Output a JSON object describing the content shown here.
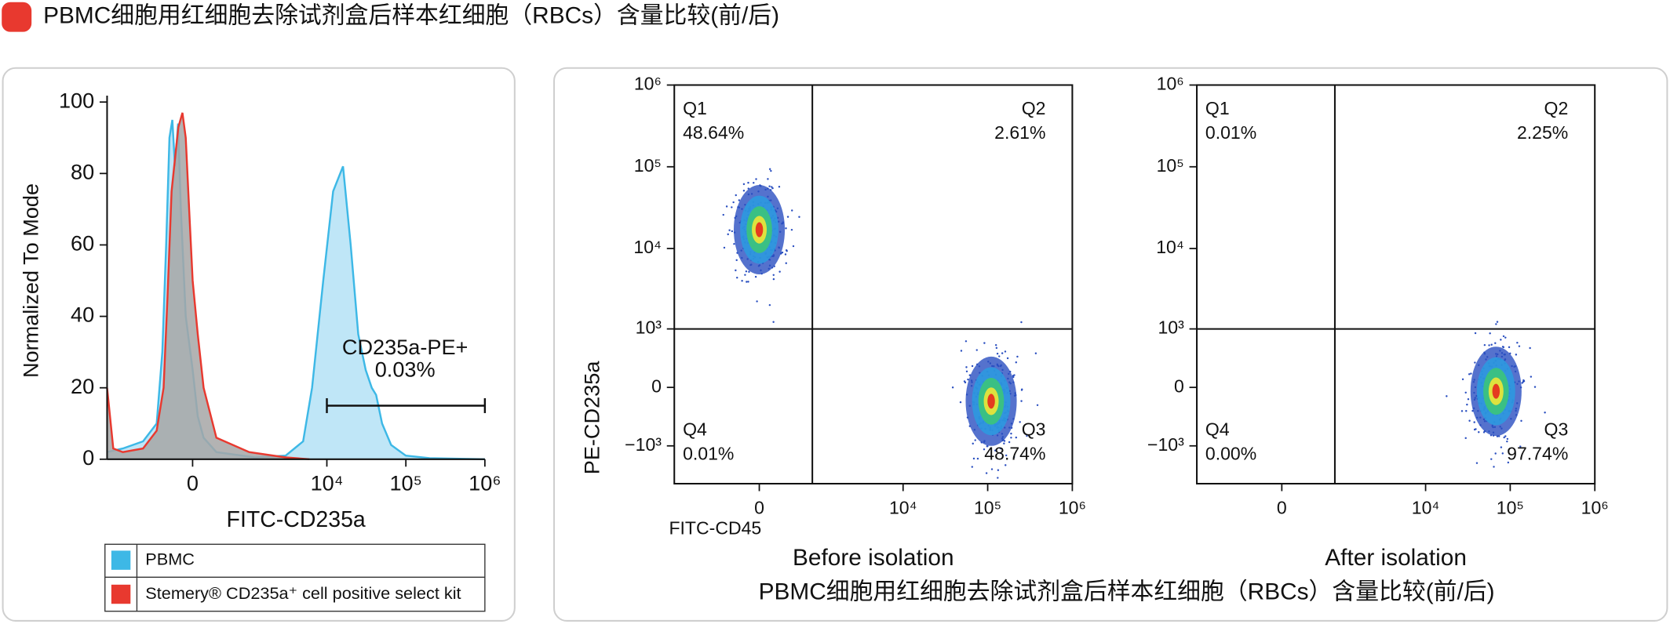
{
  "header": {
    "title": "PBMC细胞用红细胞去除试剂盒后样本红细胞（RBCs）含量比较(前/后)"
  },
  "caption": "PBMC细胞用红细胞去除试剂盒后样本红细胞（RBCs）含量比较(前/后)",
  "chart_data": [
    {
      "type": "area",
      "xlabel": "FITC-CD235a",
      "ylabel": "Normalized To Mode",
      "xscale": "biexponential",
      "xlim": [
        -2400,
        1000000
      ],
      "xticks": [
        0,
        {
          "value": 10000,
          "label": "10⁴"
        },
        {
          "value": 100000,
          "label": "10⁵"
        },
        {
          "value": 1000000,
          "label": "10⁶"
        }
      ],
      "ylim": [
        0,
        100
      ],
      "yticks": [
        0,
        20,
        40,
        60,
        80,
        100
      ],
      "legend": "bottom",
      "series": [
        {
          "name": "PBMC",
          "color": "#3db8e6",
          "fill": "#bfe6f7",
          "x": [
            -2400,
            -1500,
            -800,
            -500,
            -400,
            -340,
            -290,
            -250,
            -215,
            -175,
            -140,
            -80,
            0,
            60,
            130,
            300,
            1200,
            3000,
            5000,
            6500,
            9000,
            12000,
            16000,
            20000,
            25000,
            31000,
            37000,
            42000,
            50000,
            65000,
            100000,
            200000,
            1000000
          ],
          "values": [
            2,
            3,
            5,
            10,
            30,
            60,
            90,
            95,
            82,
            94,
            70,
            40,
            25,
            12,
            6,
            2,
            0.5,
            1,
            5,
            20,
            50,
            75,
            82,
            60,
            35,
            25,
            20,
            18,
            10,
            4,
            1,
            0.3,
            0
          ]
        },
        {
          "name": "Stemery® CD235a⁺ cell positive select kit",
          "color": "#e8392f",
          "fill": "#a6a6a6",
          "x": [
            -2400,
            -2000,
            -1500,
            -800,
            -500,
            -380,
            -320,
            -260,
            -210,
            -170,
            -120,
            -80,
            -40,
            0,
            60,
            130,
            300,
            1000,
            3000,
            6000
          ],
          "values": [
            20,
            3,
            2,
            3,
            8,
            20,
            45,
            75,
            85,
            93,
            97,
            90,
            70,
            50,
            35,
            20,
            6,
            2,
            0.5,
            0
          ]
        }
      ],
      "gate": {
        "label": "CD235a-PE+",
        "percent": "0.03%",
        "x": [
          10000,
          1000000
        ],
        "y": 15
      }
    },
    {
      "type": "scatter",
      "subtitle": "Before isolation",
      "xlabel": "FITC-CD45",
      "ylabel": "PE-CD235a",
      "xscale": "biexponential",
      "yscale": "biexponential",
      "xlim": [
        -2000,
        1000000
      ],
      "xticks": [
        0,
        {
          "value": 10000,
          "label": "10⁴"
        },
        {
          "value": 100000,
          "label": "10⁵"
        },
        {
          "value": 1000000,
          "label": "10⁶"
        }
      ],
      "ylim": [
        -3000,
        1000000
      ],
      "yticks": [
        {
          "value": -1000,
          "label": "−10³"
        },
        0,
        {
          "value": 1000,
          "label": "10³"
        },
        {
          "value": 10000,
          "label": "10⁴"
        },
        {
          "value": 100000,
          "label": "10⁵"
        },
        {
          "value": 1000000,
          "label": "10⁶"
        }
      ],
      "quadrant": {
        "x": 800,
        "y": 1000
      },
      "quadrants": [
        {
          "name": "Q1",
          "percent": "48.64%"
        },
        {
          "name": "Q2",
          "percent": "2.61%"
        },
        {
          "name": "Q4",
          "percent": "0.01%"
        },
        {
          "name": "Q3",
          "percent": "48.74%"
        }
      ],
      "x": [
        0,
        110000
      ],
      "values": [
        17000,
        -160
      ]
    },
    {
      "type": "scatter",
      "subtitle": "After isolation",
      "xscale": "biexponential",
      "yscale": "biexponential",
      "xlim": [
        -2000,
        1000000
      ],
      "xticks": [
        0,
        {
          "value": 10000,
          "label": "10⁴"
        },
        {
          "value": 100000,
          "label": "10⁵"
        },
        {
          "value": 1000000,
          "label": "10⁶"
        }
      ],
      "ylim": [
        -3000,
        1000000
      ],
      "yticks": [
        {
          "value": -1000,
          "label": "−10³"
        },
        0,
        {
          "value": 1000,
          "label": "10³"
        },
        {
          "value": 10000,
          "label": "10⁴"
        },
        {
          "value": 100000,
          "label": "10⁵"
        },
        {
          "value": 1000000,
          "label": "10⁶"
        }
      ],
      "quadrant": {
        "x": 800,
        "y": 1000
      },
      "quadrants": [
        {
          "name": "Q1",
          "percent": "0.01%"
        },
        {
          "name": "Q2",
          "percent": "2.25%"
        },
        {
          "name": "Q4",
          "percent": "0.00%"
        },
        {
          "name": "Q3",
          "percent": "97.74%"
        }
      ],
      "x": [
        68000
      ],
      "values": [
        -44
      ]
    }
  ]
}
